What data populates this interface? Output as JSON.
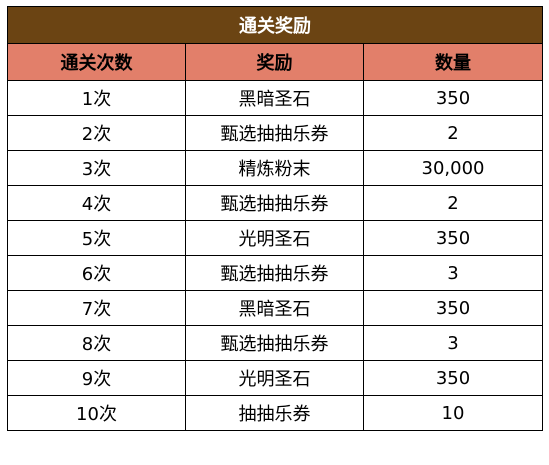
{
  "colors": {
    "title_bg": "#6b4413",
    "header_bg": "#e27f6a",
    "row_bg": "#ffffff",
    "border": "#000000"
  },
  "table": {
    "title": "通关奖励",
    "headers": [
      "通关次数",
      "奖励",
      "数量"
    ],
    "rows": [
      [
        "1次",
        "黑暗圣石",
        "350"
      ],
      [
        "2次",
        "甄选抽抽乐券",
        "2"
      ],
      [
        "3次",
        "精炼粉末",
        "30,000"
      ],
      [
        "4次",
        "甄选抽抽乐券",
        "2"
      ],
      [
        "5次",
        "光明圣石",
        "350"
      ],
      [
        "6次",
        "甄选抽抽乐券",
        "3"
      ],
      [
        "7次",
        "黑暗圣石",
        "350"
      ],
      [
        "8次",
        "甄选抽抽乐券",
        "3"
      ],
      [
        "9次",
        "光明圣石",
        "350"
      ],
      [
        "10次",
        "抽抽乐券",
        "10"
      ]
    ]
  }
}
